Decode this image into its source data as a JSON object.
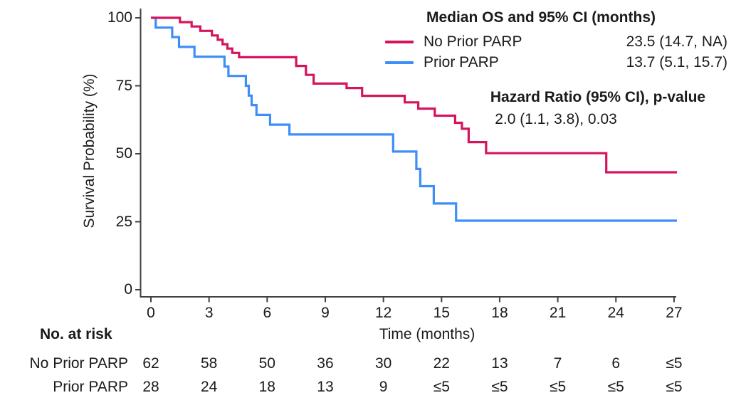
{
  "chart_data": {
    "type": "line",
    "subtype": "kaplan-meier-step-curves",
    "title": "",
    "xlabel": "Time (months)",
    "ylabel": "Survival Probability (%)",
    "xlim": [
      0,
      27
    ],
    "ylim": [
      0,
      100
    ],
    "x_ticks": [
      "0",
      "3",
      "6",
      "9",
      "12",
      "15",
      "18",
      "21",
      "24",
      "27"
    ],
    "y_ticks": [
      "0",
      "25",
      "50",
      "75",
      "100"
    ],
    "grid": false,
    "legend_position": "top-right",
    "curve_end_time": 27.15,
    "series": [
      {
        "name": "No Prior PARP",
        "color": "#D4155E",
        "median_os_95ci_months": "23.5 (14.7, NA)",
        "steps_time_survivalpct": [
          [
            0,
            100
          ],
          [
            1.5,
            98.4
          ],
          [
            2.1,
            96.8
          ],
          [
            2.55,
            95.2
          ],
          [
            3.15,
            93.5
          ],
          [
            3.45,
            91.9
          ],
          [
            3.7,
            90.3
          ],
          [
            3.95,
            88.7
          ],
          [
            4.2,
            87.1
          ],
          [
            4.55,
            85.5
          ],
          [
            7.5,
            82.3
          ],
          [
            8.0,
            79.0
          ],
          [
            8.4,
            75.8
          ],
          [
            10.1,
            74.2
          ],
          [
            10.9,
            71.3
          ],
          [
            13.1,
            68.9
          ],
          [
            13.8,
            66.6
          ],
          [
            14.65,
            64.0
          ],
          [
            15.7,
            61.4
          ],
          [
            16.05,
            59.2
          ],
          [
            16.4,
            54.3
          ],
          [
            17.3,
            50.2
          ],
          [
            23.5,
            43.2
          ]
        ]
      },
      {
        "name": "Prior PARP",
        "color": "#3E8EF7",
        "median_os_95ci_months": "13.7 (5.1, 15.7)",
        "steps_time_survivalpct": [
          [
            0,
            100
          ],
          [
            0.25,
            96.4
          ],
          [
            1.1,
            92.9
          ],
          [
            1.45,
            89.3
          ],
          [
            2.25,
            85.7
          ],
          [
            3.8,
            82.1
          ],
          [
            4.0,
            78.6
          ],
          [
            4.9,
            75.0
          ],
          [
            5.05,
            71.4
          ],
          [
            5.2,
            67.9
          ],
          [
            5.45,
            64.3
          ],
          [
            6.15,
            60.7
          ],
          [
            7.15,
            57.1
          ],
          [
            12.5,
            50.8
          ],
          [
            13.7,
            44.4
          ],
          [
            13.9,
            38.1
          ],
          [
            14.6,
            31.7
          ],
          [
            15.75,
            25.4
          ]
        ]
      }
    ],
    "legend": {
      "title": "Median OS and 95% CI (months)",
      "entries": [
        {
          "label": "No Prior PARP",
          "value": "23.5 (14.7, NA)",
          "color": "#D4155E"
        },
        {
          "label": "Prior PARP",
          "value": "13.7 (5.1, 15.7)",
          "color": "#3E8EF7"
        }
      ]
    },
    "annotations": {
      "hazard_title": "Hazard Ratio (95% CI), p-value",
      "hazard_value": "2.0 (1.1, 3.8), 0.03"
    },
    "risk_table": {
      "title": "No. at risk",
      "times": [
        "0",
        "3",
        "6",
        "9",
        "12",
        "15",
        "18",
        "21",
        "24",
        "27"
      ],
      "rows": [
        {
          "label": "No Prior PARP",
          "counts": [
            "62",
            "58",
            "50",
            "36",
            "30",
            "22",
            "13",
            "7",
            "6",
            "≤5"
          ]
        },
        {
          "label": "Prior PARP",
          "counts": [
            "28",
            "24",
            "18",
            "13",
            "9",
            "≤5",
            "≤5",
            "≤5",
            "≤5",
            "≤5"
          ]
        }
      ]
    }
  }
}
